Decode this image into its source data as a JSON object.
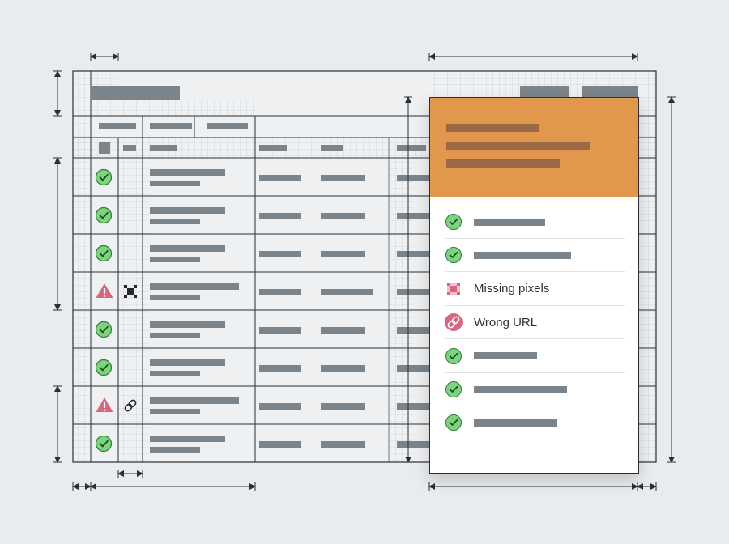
{
  "panel": {
    "items": [
      {
        "kind": "ok",
        "icon": "check-icon",
        "text": ""
      },
      {
        "kind": "ok",
        "icon": "check-icon",
        "text": ""
      },
      {
        "kind": "issue",
        "icon": "missing-pixels-icon",
        "text": "Missing pixels"
      },
      {
        "kind": "issue",
        "icon": "broken-link-icon",
        "text": "Wrong URL"
      },
      {
        "kind": "ok",
        "icon": "check-icon",
        "text": ""
      },
      {
        "kind": "ok",
        "icon": "check-icon",
        "text": ""
      },
      {
        "kind": "ok",
        "icon": "check-icon",
        "text": ""
      }
    ]
  },
  "table": {
    "row_status": [
      "ok",
      "ok",
      "ok",
      "warning",
      "ok",
      "ok",
      "warning",
      "ok"
    ],
    "row_issue_icon": [
      "",
      "",
      "",
      "missing-pixels-icon",
      "",
      "",
      "broken-link-icon",
      ""
    ]
  },
  "colors": {
    "background": "#e9ecef",
    "placeholder_bar": "#7b848b",
    "panel_header": "#e1984d",
    "header_bar": "#9b6a45",
    "check_green": "#7ed37f",
    "warning_pink": "#d9657f",
    "line": "#2b2f33"
  }
}
